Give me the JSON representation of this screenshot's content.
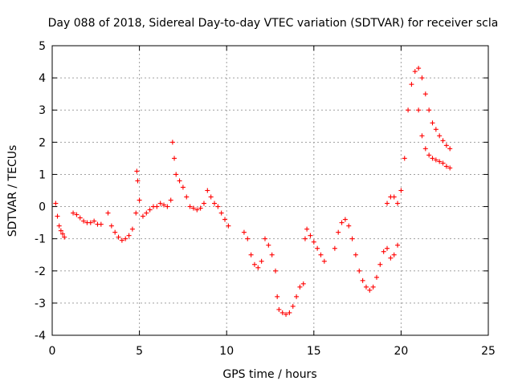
{
  "chart_data": {
    "type": "scatter",
    "title": "Day 088 of 2018, Sidereal Day-to-day VTEC variation (SDTVAR) for receiver scla",
    "xlabel": "GPS time / hours",
    "ylabel": "SDTVAR / TECUs",
    "xlim": [
      0,
      25
    ],
    "ylim": [
      -4,
      5
    ],
    "xticks": [
      0,
      5,
      10,
      15,
      20,
      25
    ],
    "yticks": [
      -4,
      -3,
      -2,
      -1,
      0,
      1,
      2,
      3,
      4,
      5
    ],
    "grid": true,
    "marker": "+",
    "color": "#ff0000",
    "series": [
      {
        "name": "SDTVAR",
        "points": [
          [
            0.2,
            0.1
          ],
          [
            0.3,
            -0.3
          ],
          [
            0.4,
            -0.6
          ],
          [
            0.5,
            -0.75
          ],
          [
            0.6,
            -0.85
          ],
          [
            0.7,
            -0.95
          ],
          [
            1.2,
            -0.2
          ],
          [
            1.4,
            -0.25
          ],
          [
            1.6,
            -0.35
          ],
          [
            1.8,
            -0.45
          ],
          [
            2.0,
            -0.5
          ],
          [
            2.2,
            -0.5
          ],
          [
            2.4,
            -0.45
          ],
          [
            2.6,
            -0.55
          ],
          [
            2.8,
            -0.55
          ],
          [
            3.2,
            -0.2
          ],
          [
            3.4,
            -0.6
          ],
          [
            3.6,
            -0.8
          ],
          [
            3.8,
            -0.95
          ],
          [
            4.0,
            -1.05
          ],
          [
            4.2,
            -1.0
          ],
          [
            4.4,
            -0.9
          ],
          [
            4.6,
            -0.7
          ],
          [
            4.8,
            -0.2
          ],
          [
            4.85,
            1.1
          ],
          [
            4.9,
            0.8
          ],
          [
            5.0,
            0.2
          ],
          [
            5.2,
            -0.3
          ],
          [
            5.4,
            -0.2
          ],
          [
            5.6,
            -0.1
          ],
          [
            5.8,
            0.0
          ],
          [
            6.0,
            0.0
          ],
          [
            6.2,
            0.1
          ],
          [
            6.4,
            0.05
          ],
          [
            6.6,
            0.0
          ],
          [
            6.8,
            0.2
          ],
          [
            6.9,
            2.0
          ],
          [
            7.0,
            1.5
          ],
          [
            7.1,
            1.0
          ],
          [
            7.3,
            0.8
          ],
          [
            7.5,
            0.6
          ],
          [
            7.7,
            0.3
          ],
          [
            7.9,
            0.0
          ],
          [
            8.1,
            -0.05
          ],
          [
            8.3,
            -0.1
          ],
          [
            8.5,
            -0.05
          ],
          [
            8.7,
            0.1
          ],
          [
            8.9,
            0.5
          ],
          [
            9.1,
            0.3
          ],
          [
            9.3,
            0.1
          ],
          [
            9.5,
            0.0
          ],
          [
            9.7,
            -0.2
          ],
          [
            9.9,
            -0.4
          ],
          [
            10.1,
            -0.6
          ],
          [
            11.0,
            -0.8
          ],
          [
            11.2,
            -1.0
          ],
          [
            11.4,
            -1.5
          ],
          [
            11.6,
            -1.8
          ],
          [
            11.8,
            -1.9
          ],
          [
            12.0,
            -1.7
          ],
          [
            12.2,
            -1.0
          ],
          [
            12.4,
            -1.2
          ],
          [
            12.6,
            -1.5
          ],
          [
            12.8,
            -2.0
          ],
          [
            12.9,
            -2.8
          ],
          [
            13.0,
            -3.2
          ],
          [
            13.2,
            -3.3
          ],
          [
            13.4,
            -3.35
          ],
          [
            13.6,
            -3.3
          ],
          [
            13.8,
            -3.1
          ],
          [
            14.0,
            -2.8
          ],
          [
            14.2,
            -2.5
          ],
          [
            14.4,
            -2.4
          ],
          [
            14.5,
            -1.0
          ],
          [
            14.6,
            -0.7
          ],
          [
            14.8,
            -0.9
          ],
          [
            15.0,
            -1.1
          ],
          [
            15.2,
            -1.3
          ],
          [
            15.4,
            -1.5
          ],
          [
            15.6,
            -1.7
          ],
          [
            16.2,
            -1.3
          ],
          [
            16.4,
            -0.8
          ],
          [
            16.6,
            -0.5
          ],
          [
            16.8,
            -0.4
          ],
          [
            17.0,
            -0.6
          ],
          [
            17.2,
            -1.0
          ],
          [
            17.4,
            -1.5
          ],
          [
            17.6,
            -2.0
          ],
          [
            17.8,
            -2.3
          ],
          [
            18.0,
            -2.5
          ],
          [
            18.2,
            -2.6
          ],
          [
            18.4,
            -2.5
          ],
          [
            18.6,
            -2.2
          ],
          [
            18.8,
            -1.8
          ],
          [
            19.0,
            -1.4
          ],
          [
            19.2,
            -1.3
          ],
          [
            19.4,
            -1.6
          ],
          [
            19.6,
            -1.5
          ],
          [
            19.8,
            -1.2
          ],
          [
            19.2,
            0.1
          ],
          [
            19.4,
            0.3
          ],
          [
            19.6,
            0.3
          ],
          [
            19.8,
            0.1
          ],
          [
            20.0,
            0.5
          ],
          [
            20.2,
            1.5
          ],
          [
            20.4,
            3.0
          ],
          [
            20.6,
            3.8
          ],
          [
            20.8,
            4.2
          ],
          [
            21.0,
            4.3
          ],
          [
            21.2,
            4.0
          ],
          [
            21.4,
            3.5
          ],
          [
            21.6,
            3.0
          ],
          [
            21.8,
            2.6
          ],
          [
            22.0,
            2.4
          ],
          [
            22.2,
            2.2
          ],
          [
            22.4,
            2.05
          ],
          [
            22.6,
            1.9
          ],
          [
            22.8,
            1.8
          ],
          [
            21.0,
            3.0
          ],
          [
            21.2,
            2.2
          ],
          [
            21.4,
            1.8
          ],
          [
            21.6,
            1.6
          ],
          [
            21.8,
            1.5
          ],
          [
            22.0,
            1.45
          ],
          [
            22.2,
            1.4
          ],
          [
            22.4,
            1.35
          ],
          [
            22.6,
            1.25
          ],
          [
            22.8,
            1.2
          ]
        ]
      }
    ]
  }
}
